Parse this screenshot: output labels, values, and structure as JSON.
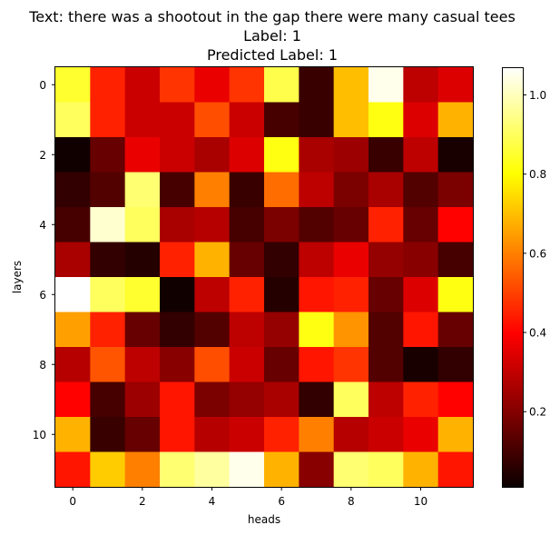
{
  "chart_data": {
    "type": "heatmap",
    "title_lines": [
      "Text: there was a shootout in the gap there were many casual tees",
      "Label: 1",
      "Predicted Label: 1"
    ],
    "xlabel": "heads",
    "ylabel": "layers",
    "x_ticks": [
      0,
      2,
      4,
      6,
      8,
      10
    ],
    "y_ticks": [
      0,
      2,
      4,
      6,
      8,
      10
    ],
    "colormap": "hot",
    "colorbar_range": [
      0.01,
      1.07
    ],
    "colorbar_ticks": [
      0.2,
      0.4,
      0.6,
      0.8,
      1.0
    ],
    "colorbar_tick_labels": [
      "0.2",
      "0.4",
      "0.6",
      "0.8",
      "1.0"
    ],
    "rows": 12,
    "cols": 12,
    "values": [
      [
        0.85,
        0.45,
        0.3,
        0.48,
        0.35,
        0.48,
        0.88,
        0.08,
        0.7,
        1.05,
        0.28,
        0.33
      ],
      [
        0.9,
        0.45,
        0.3,
        0.3,
        0.52,
        0.3,
        0.1,
        0.08,
        0.7,
        0.82,
        0.33,
        0.68
      ],
      [
        0.02,
        0.15,
        0.35,
        0.3,
        0.25,
        0.33,
        0.82,
        0.25,
        0.23,
        0.08,
        0.28,
        0.03
      ],
      [
        0.07,
        0.12,
        0.92,
        0.1,
        0.6,
        0.08,
        0.57,
        0.28,
        0.18,
        0.25,
        0.12,
        0.18
      ],
      [
        0.1,
        1.02,
        0.9,
        0.25,
        0.27,
        0.1,
        0.18,
        0.12,
        0.15,
        0.45,
        0.15,
        0.4
      ],
      [
        0.25,
        0.07,
        0.05,
        0.45,
        0.68,
        0.15,
        0.07,
        0.28,
        0.35,
        0.22,
        0.2,
        0.1
      ],
      [
        1.07,
        0.9,
        0.85,
        0.02,
        0.28,
        0.45,
        0.05,
        0.43,
        0.45,
        0.15,
        0.33,
        0.82
      ],
      [
        0.65,
        0.45,
        0.15,
        0.07,
        0.12,
        0.28,
        0.22,
        0.82,
        0.63,
        0.12,
        0.43,
        0.15
      ],
      [
        0.27,
        0.53,
        0.28,
        0.2,
        0.52,
        0.3,
        0.15,
        0.43,
        0.48,
        0.12,
        0.03,
        0.07
      ],
      [
        0.4,
        0.1,
        0.23,
        0.43,
        0.18,
        0.22,
        0.25,
        0.07,
        0.9,
        0.28,
        0.45,
        0.4
      ],
      [
        0.68,
        0.08,
        0.15,
        0.43,
        0.27,
        0.3,
        0.45,
        0.6,
        0.27,
        0.3,
        0.35,
        0.68
      ],
      [
        0.43,
        0.72,
        0.6,
        0.92,
        0.97,
        1.05,
        0.68,
        0.2,
        0.92,
        0.9,
        0.68,
        0.43
      ]
    ]
  }
}
